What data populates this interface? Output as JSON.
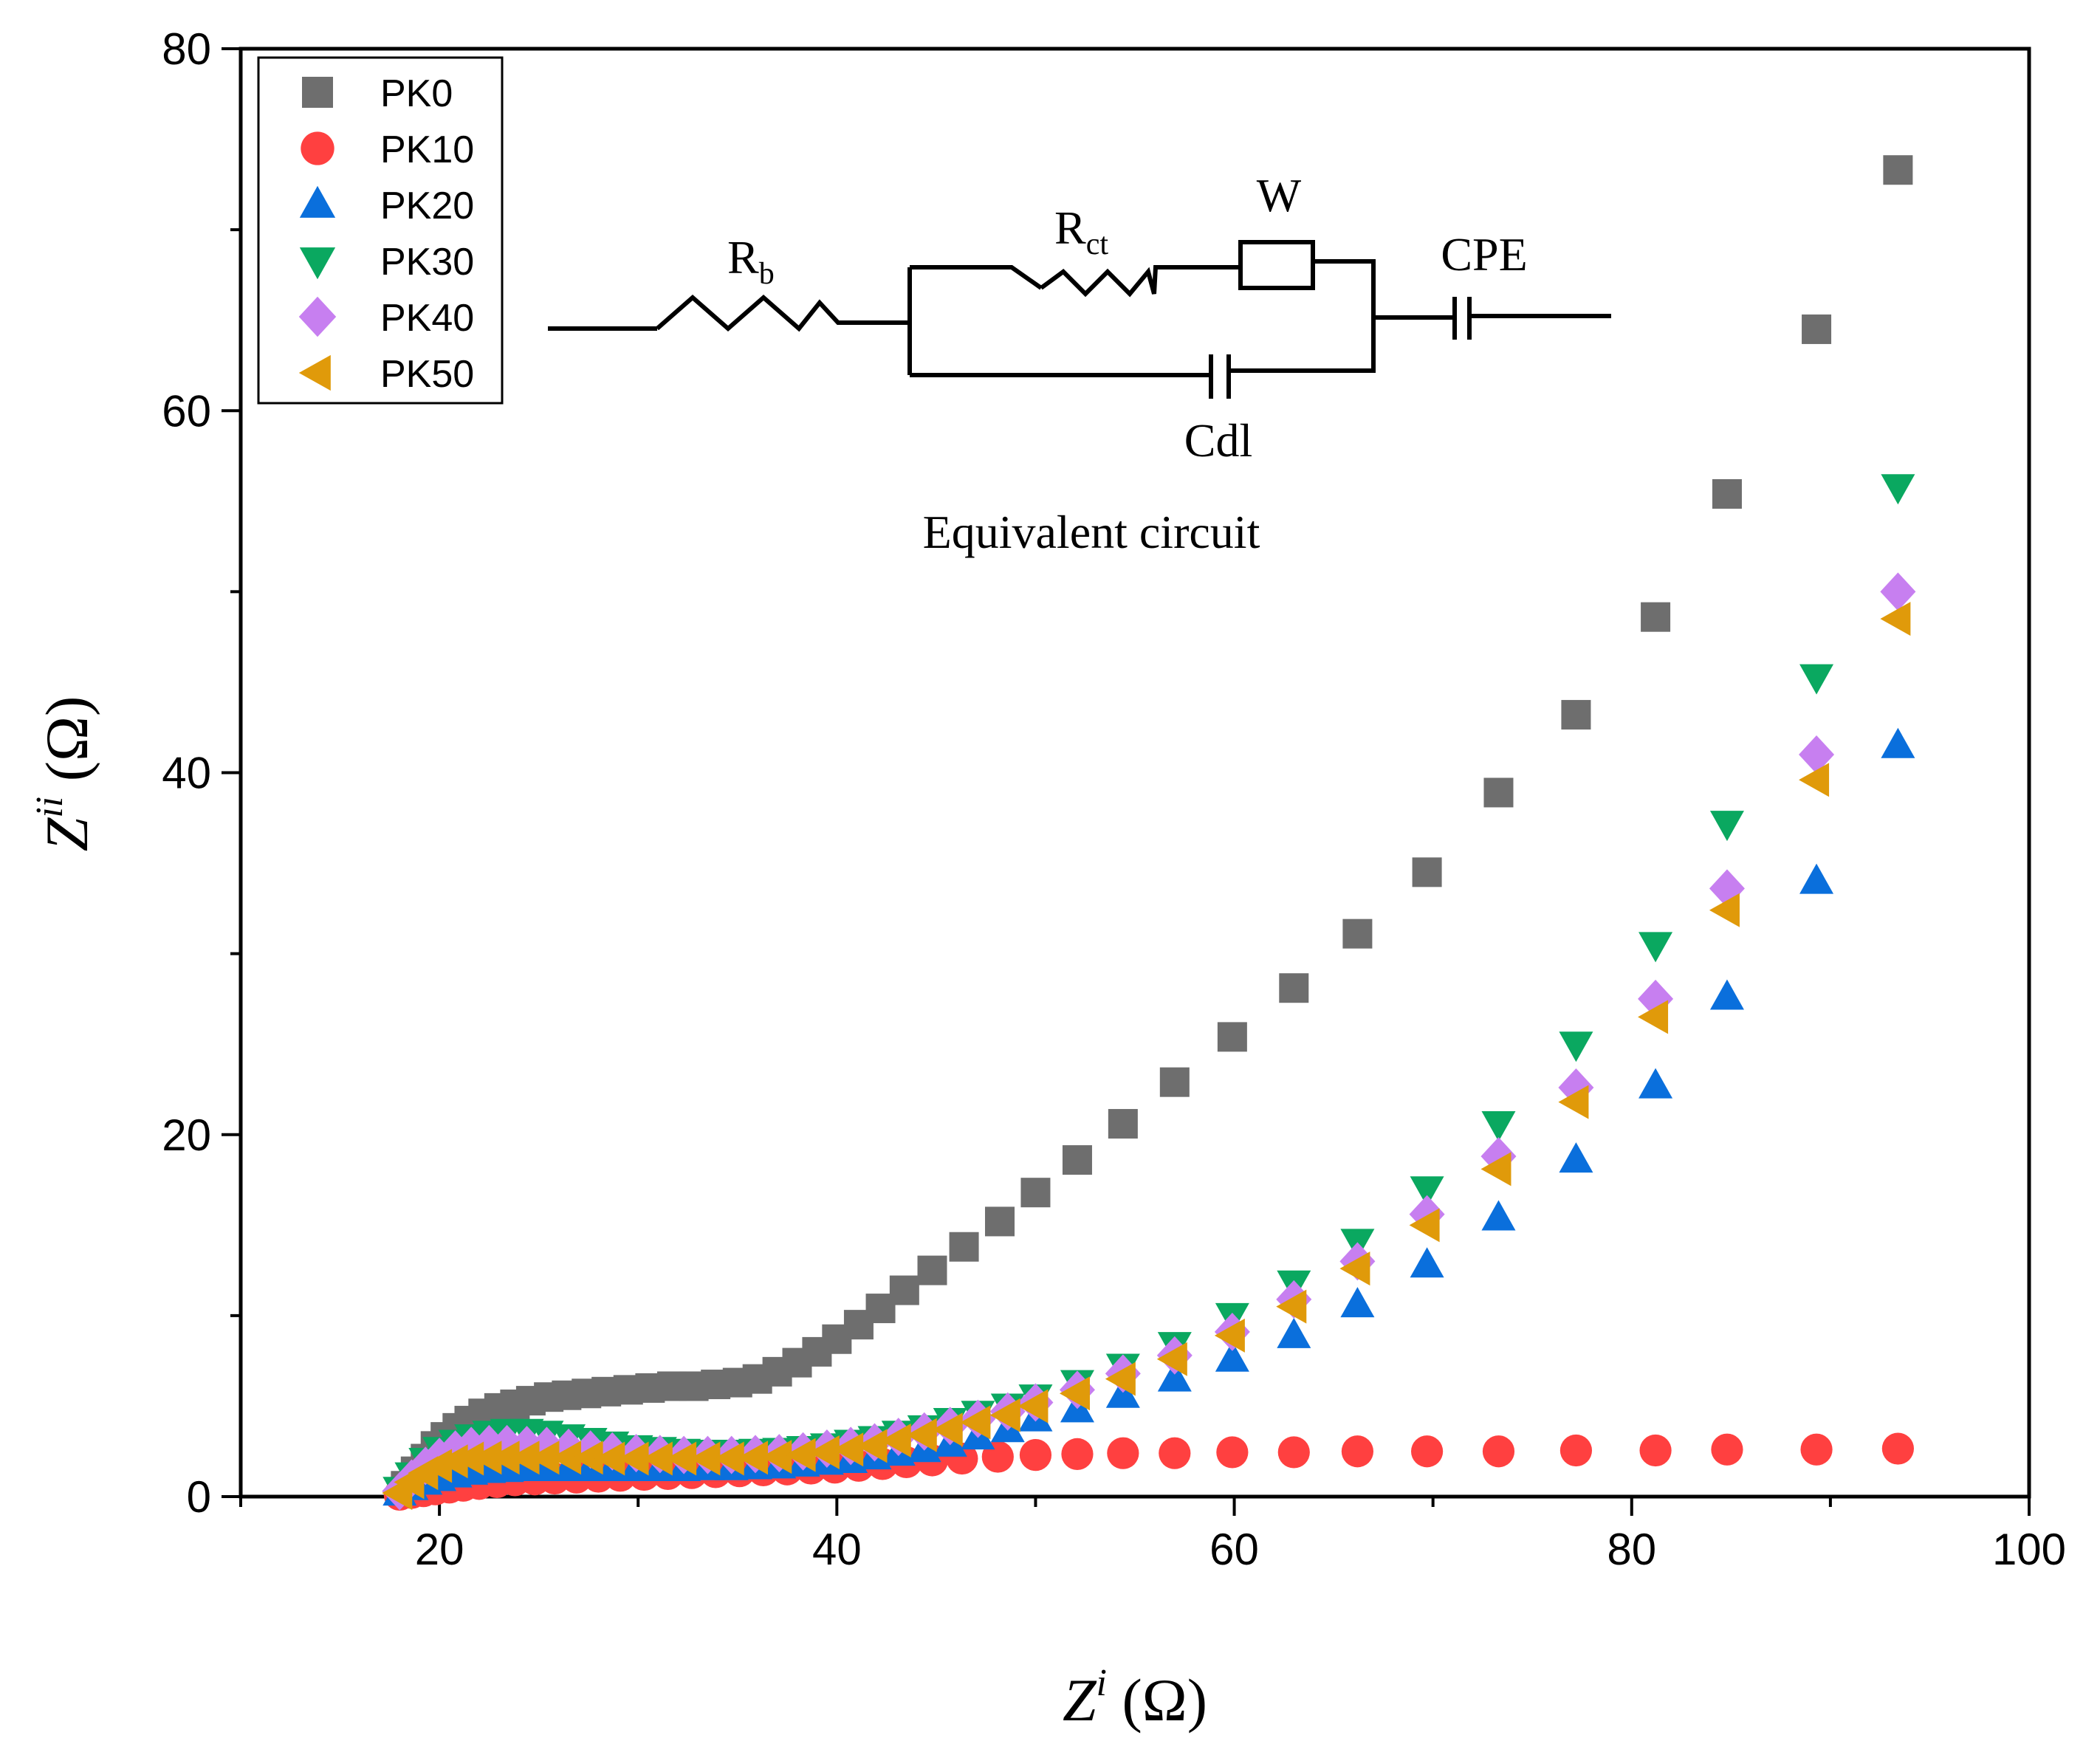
{
  "colors": {
    "PK0": "#6e6e6e",
    "PK10": "#ff4040",
    "PK20": "#0a6fdc",
    "PK30": "#0aa860",
    "PK40": "#c77ff0",
    "PK50": "#e09a0a"
  },
  "chart_data": {
    "type": "scatter",
    "xlabel": "Z",
    "xlabel_sup": "i",
    "xlabel_unit": " (Ω)",
    "ylabel": "Z",
    "ylabel_sup": "ii",
    "ylabel_unit": " (Ω)",
    "xlim": [
      10,
      100
    ],
    "ylim": [
      0,
      80
    ],
    "xticks": [
      20,
      40,
      60,
      80,
      100
    ],
    "yticks": [
      0,
      20,
      40,
      60,
      80
    ],
    "grid": false,
    "legend_position": "top-left",
    "series": [
      {
        "name": "PK0",
        "marker": "square",
        "x": [
          18.3,
          18.8,
          19.3,
          19.8,
          20.3,
          20.9,
          21.5,
          22.2,
          23.0,
          23.8,
          24.6,
          25.5,
          26.4,
          27.4,
          28.4,
          29.5,
          30.6,
          31.7,
          32.8,
          33.9,
          35.0,
          36.0,
          37.0,
          38.0,
          39.0,
          40.0,
          41.1,
          42.2,
          43.4,
          44.8,
          46.4,
          48.2,
          50.0,
          52.1,
          54.4,
          57.0,
          59.9,
          63.0,
          66.2,
          69.7,
          73.3,
          77.2,
          81.2,
          84.8,
          89.3,
          93.4
        ],
        "y": [
          0.6,
          1.4,
          2.1,
          2.8,
          3.3,
          3.8,
          4.2,
          4.6,
          4.9,
          5.1,
          5.3,
          5.5,
          5.6,
          5.7,
          5.8,
          5.9,
          6.0,
          6.1,
          6.1,
          6.2,
          6.3,
          6.5,
          6.9,
          7.4,
          8.0,
          8.7,
          9.5,
          10.4,
          11.4,
          12.5,
          13.8,
          15.2,
          16.8,
          18.6,
          20.6,
          22.9,
          25.4,
          28.1,
          31.1,
          34.5,
          38.9,
          43.2,
          48.6,
          55.4,
          64.5,
          73.3
        ]
      },
      {
        "name": "PK10",
        "marker": "circle",
        "x": [
          18.0,
          18.6,
          19.2,
          19.8,
          20.5,
          21.2,
          22.0,
          22.9,
          23.8,
          24.8,
          25.8,
          26.9,
          28.0,
          29.1,
          30.3,
          31.5,
          32.7,
          33.9,
          35.1,
          36.3,
          37.5,
          38.7,
          39.9,
          41.1,
          42.3,
          43.5,
          44.8,
          46.3,
          48.1,
          50.0,
          52.1,
          54.4,
          57.0,
          59.9,
          63.0,
          66.2,
          69.7,
          73.3,
          77.2,
          81.2,
          84.8,
          89.3,
          93.4
        ],
        "y": [
          0.1,
          0.2,
          0.3,
          0.4,
          0.5,
          0.6,
          0.7,
          0.8,
          0.9,
          0.95,
          1.0,
          1.05,
          1.1,
          1.15,
          1.2,
          1.25,
          1.3,
          1.35,
          1.4,
          1.45,
          1.5,
          1.55,
          1.6,
          1.7,
          1.8,
          1.9,
          2.0,
          2.1,
          2.2,
          2.3,
          2.35,
          2.4,
          2.4,
          2.45,
          2.45,
          2.5,
          2.5,
          2.5,
          2.55,
          2.55,
          2.6,
          2.6,
          2.65
        ]
      },
      {
        "name": "PK20",
        "marker": "triangle-up",
        "x": [
          18.0,
          18.6,
          19.3,
          20.0,
          20.8,
          21.6,
          22.5,
          23.4,
          24.4,
          25.4,
          26.5,
          27.6,
          28.7,
          29.9,
          31.1,
          32.3,
          33.5,
          34.7,
          35.9,
          37.1,
          38.3,
          39.5,
          40.7,
          41.9,
          43.1,
          44.4,
          45.7,
          47.1,
          48.6,
          50.0,
          52.1,
          54.4,
          57.0,
          59.9,
          63.0,
          66.2,
          69.7,
          73.3,
          77.2,
          81.2,
          84.8,
          89.3,
          93.4
        ],
        "y": [
          0.2,
          0.5,
          0.8,
          1.0,
          1.2,
          1.35,
          1.45,
          1.5,
          1.55,
          1.55,
          1.55,
          1.55,
          1.55,
          1.55,
          1.55,
          1.55,
          1.6,
          1.6,
          1.65,
          1.7,
          1.8,
          1.9,
          2.0,
          2.2,
          2.4,
          2.6,
          2.9,
          3.3,
          3.7,
          4.3,
          4.8,
          5.6,
          6.5,
          7.6,
          8.9,
          10.6,
          12.8,
          15.4,
          18.6,
          22.7,
          27.6,
          34.0,
          41.5
        ]
      },
      {
        "name": "PK30",
        "marker": "triangle-down",
        "x": [
          18.0,
          18.6,
          19.3,
          20.0,
          20.8,
          21.6,
          22.5,
          23.4,
          24.4,
          25.4,
          26.5,
          27.6,
          28.7,
          29.9,
          31.1,
          32.3,
          33.5,
          34.7,
          35.9,
          37.1,
          38.3,
          39.5,
          40.7,
          41.9,
          43.1,
          44.4,
          45.7,
          47.1,
          48.6,
          50.0,
          52.1,
          54.4,
          57.0,
          59.9,
          63.0,
          66.2,
          69.7,
          73.3,
          77.2,
          81.2,
          84.8,
          89.3,
          93.4
        ],
        "y": [
          0.4,
          1.2,
          2.0,
          2.6,
          3.0,
          3.3,
          3.5,
          3.6,
          3.6,
          3.5,
          3.3,
          3.1,
          2.9,
          2.7,
          2.6,
          2.5,
          2.45,
          2.45,
          2.5,
          2.55,
          2.65,
          2.8,
          3.0,
          3.2,
          3.5,
          3.8,
          4.2,
          4.6,
          5.0,
          5.5,
          6.3,
          7.2,
          8.4,
          10.0,
          11.8,
          14.1,
          17.0,
          20.6,
          25.0,
          30.5,
          37.2,
          45.3,
          55.8
        ]
      },
      {
        "name": "PK40",
        "marker": "diamond",
        "x": [
          18.0,
          18.6,
          19.3,
          20.0,
          20.8,
          21.6,
          22.5,
          23.4,
          24.4,
          25.4,
          26.5,
          27.6,
          28.7,
          29.9,
          31.1,
          32.3,
          33.5,
          34.7,
          35.9,
          37.1,
          38.3,
          39.5,
          40.7,
          41.9,
          43.1,
          44.4,
          45.7,
          47.1,
          48.6,
          50.0,
          52.1,
          54.4,
          57.0,
          59.9,
          63.0,
          66.2,
          69.7,
          73.3,
          77.2,
          81.2,
          84.8,
          89.3,
          93.4
        ],
        "y": [
          0.3,
          1.0,
          1.7,
          2.2,
          2.6,
          2.8,
          2.9,
          2.9,
          2.85,
          2.8,
          2.7,
          2.6,
          2.5,
          2.4,
          2.35,
          2.3,
          2.3,
          2.3,
          2.35,
          2.4,
          2.5,
          2.65,
          2.8,
          3.0,
          3.3,
          3.6,
          3.9,
          4.3,
          4.7,
          5.2,
          5.9,
          6.8,
          7.8,
          9.1,
          10.9,
          13.0,
          15.6,
          18.8,
          22.6,
          27.5,
          33.6,
          41.0,
          50.0
        ]
      },
      {
        "name": "PK50",
        "marker": "triangle-left",
        "x": [
          18.0,
          18.6,
          19.3,
          20.0,
          20.8,
          21.6,
          22.5,
          23.4,
          24.4,
          25.4,
          26.5,
          27.6,
          28.7,
          29.9,
          31.1,
          32.3,
          33.5,
          34.7,
          35.9,
          37.1,
          38.3,
          39.5,
          40.7,
          41.9,
          43.1,
          44.4,
          45.7,
          47.1,
          48.6,
          50.0,
          52.1,
          54.4,
          57.0,
          59.9,
          63.0,
          66.2,
          69.7,
          73.3,
          77.2,
          81.2,
          84.8,
          89.3,
          93.4
        ],
        "y": [
          0.2,
          0.8,
          1.3,
          1.7,
          1.95,
          2.1,
          2.15,
          2.15,
          2.15,
          2.15,
          2.15,
          2.15,
          2.1,
          2.1,
          2.1,
          2.1,
          2.1,
          2.1,
          2.15,
          2.2,
          2.3,
          2.45,
          2.6,
          2.8,
          3.1,
          3.4,
          3.7,
          4.1,
          4.5,
          5.0,
          5.7,
          6.5,
          7.6,
          8.9,
          10.5,
          12.6,
          15.0,
          18.1,
          21.8,
          26.5,
          32.4,
          39.6,
          48.5
        ]
      }
    ]
  },
  "inset": {
    "title": "Equivalent circuit",
    "labels": {
      "rb_main": "R",
      "rb_sub": "b",
      "rct_main": "R",
      "rct_sub": "ct",
      "w": "W",
      "cpe": "CPE",
      "cdl": "Cdl"
    }
  }
}
